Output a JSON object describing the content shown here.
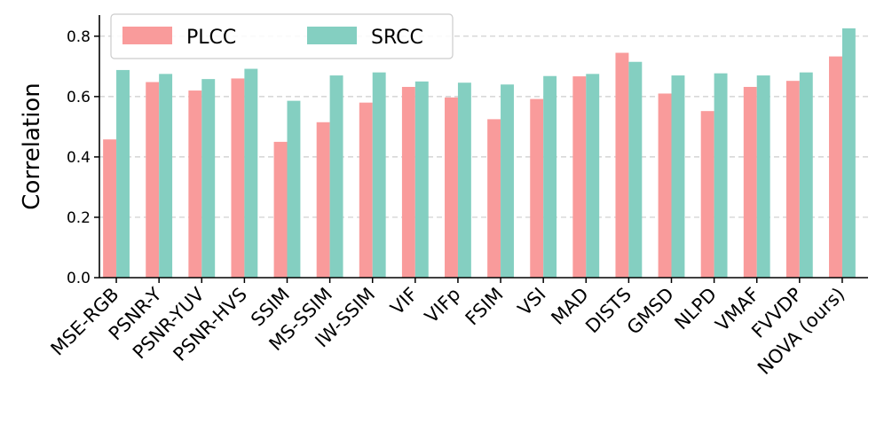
{
  "chart_data": {
    "type": "bar",
    "title": "",
    "xlabel": "",
    "ylabel": "Correlation",
    "ylim": [
      0,
      0.87
    ],
    "yticks": [
      0.0,
      0.2,
      0.4,
      0.6,
      0.8
    ],
    "ytick_labels": [
      "0.0",
      "0.2",
      "0.4",
      "0.6",
      "0.8"
    ],
    "grid": "horizontal dashed",
    "legend_position": "top-left",
    "categories": [
      "MSE-RGB",
      "PSNR-Y",
      "PSNR-YUV",
      "PSNR-HVS",
      "SSIM",
      "MS-SSIM",
      "IW-SSIM",
      "VIF",
      "VIFp",
      "FSIM",
      "VSI",
      "MAD",
      "DISTS",
      "GMSD",
      "NLPD",
      "VMAF",
      "FVVDP",
      "NOVA (ours)"
    ],
    "series": [
      {
        "name": "PLCC",
        "color": "#F99B9B",
        "values": [
          0.458,
          0.648,
          0.62,
          0.66,
          0.45,
          0.515,
          0.58,
          0.632,
          0.597,
          0.525,
          0.592,
          0.667,
          0.745,
          0.61,
          0.552,
          0.632,
          0.652,
          0.733
        ]
      },
      {
        "name": "SRCC",
        "color": "#84CFC1",
        "values": [
          0.688,
          0.675,
          0.658,
          0.692,
          0.586,
          0.67,
          0.68,
          0.65,
          0.646,
          0.64,
          0.668,
          0.675,
          0.715,
          0.67,
          0.677,
          0.67,
          0.68,
          0.826
        ]
      }
    ]
  }
}
